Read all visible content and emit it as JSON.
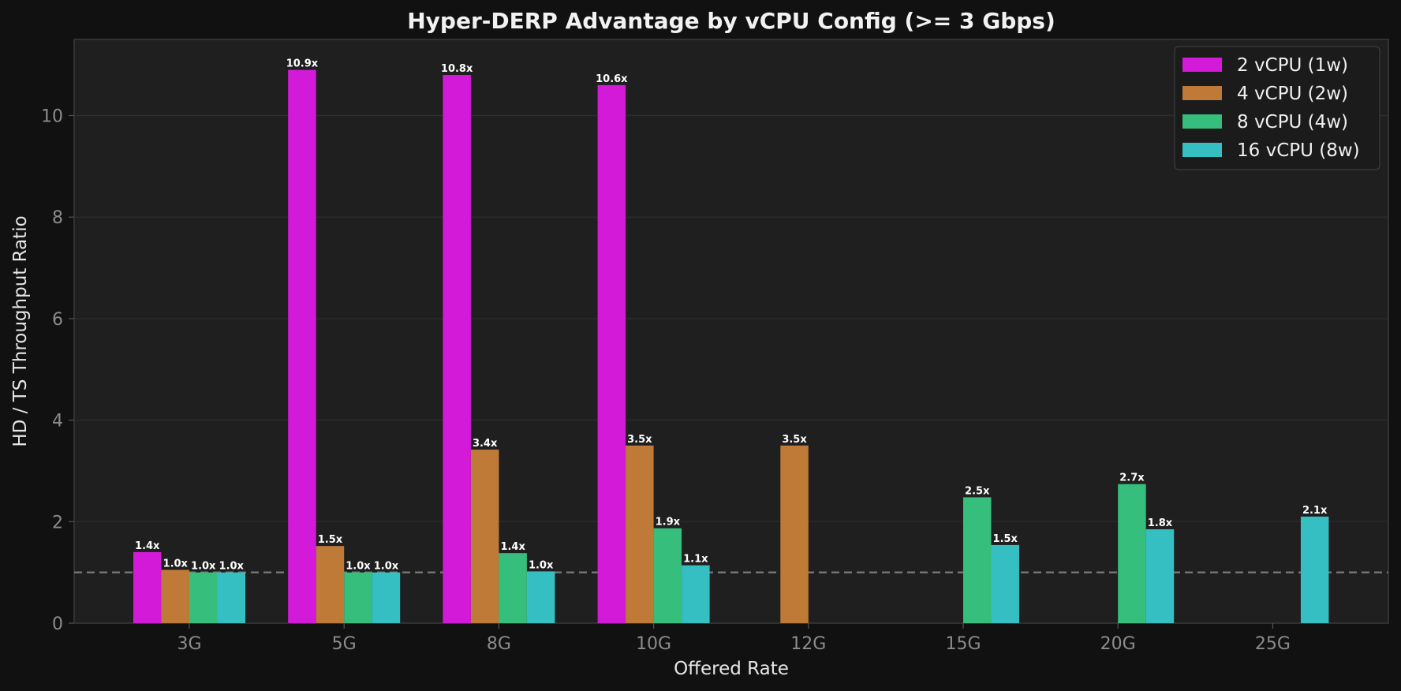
{
  "chart_data": {
    "type": "bar",
    "title": "Hyper-DERP Advantage by vCPU Config (>= 3 Gbps)",
    "xlabel": "Offered Rate",
    "ylabel": "HD / TS Throughput Ratio",
    "ylim": [
      0,
      11.5
    ],
    "yticks": [
      0,
      2,
      4,
      6,
      8,
      10
    ],
    "ytick_labels": [
      "0",
      "2",
      "4",
      "6",
      "8",
      "10"
    ],
    "reference_line": 1.0,
    "legend_position": "top-right",
    "categories": [
      "3G",
      "5G",
      "8G",
      "10G",
      "12G",
      "15G",
      "20G",
      "25G"
    ],
    "series": [
      {
        "name": "2 vCPU (1w)",
        "color": "#d41ad9",
        "values": [
          1.4,
          10.9,
          10.8,
          10.6,
          null,
          null,
          null,
          null
        ],
        "labels": [
          "1.4x",
          "10.9x",
          "10.8x",
          "10.6x",
          null,
          null,
          null,
          null
        ]
      },
      {
        "name": "4 vCPU (2w)",
        "color": "#c07a38",
        "values": [
          1.05,
          1.52,
          3.42,
          3.5,
          3.5,
          null,
          null,
          null
        ],
        "labels": [
          "1.0x",
          "1.5x",
          "3.4x",
          "3.5x",
          "3.5x",
          null,
          null,
          null
        ]
      },
      {
        "name": "8 vCPU (4w)",
        "color": "#36be7c",
        "values": [
          1.0,
          1.0,
          1.38,
          1.87,
          null,
          2.48,
          2.74,
          null
        ],
        "labels": [
          "1.0x",
          "1.0x",
          "1.4x",
          "1.9x",
          null,
          "2.5x",
          "2.7x",
          null
        ]
      },
      {
        "name": "16 vCPU (8w)",
        "color": "#36bfc2",
        "values": [
          1.0,
          1.0,
          1.02,
          1.14,
          null,
          1.54,
          1.85,
          2.1
        ],
        "labels": [
          "1.0x",
          "1.0x",
          "1.0x",
          "1.1x",
          null,
          "1.5x",
          "1.8x",
          "2.1x"
        ]
      }
    ]
  }
}
